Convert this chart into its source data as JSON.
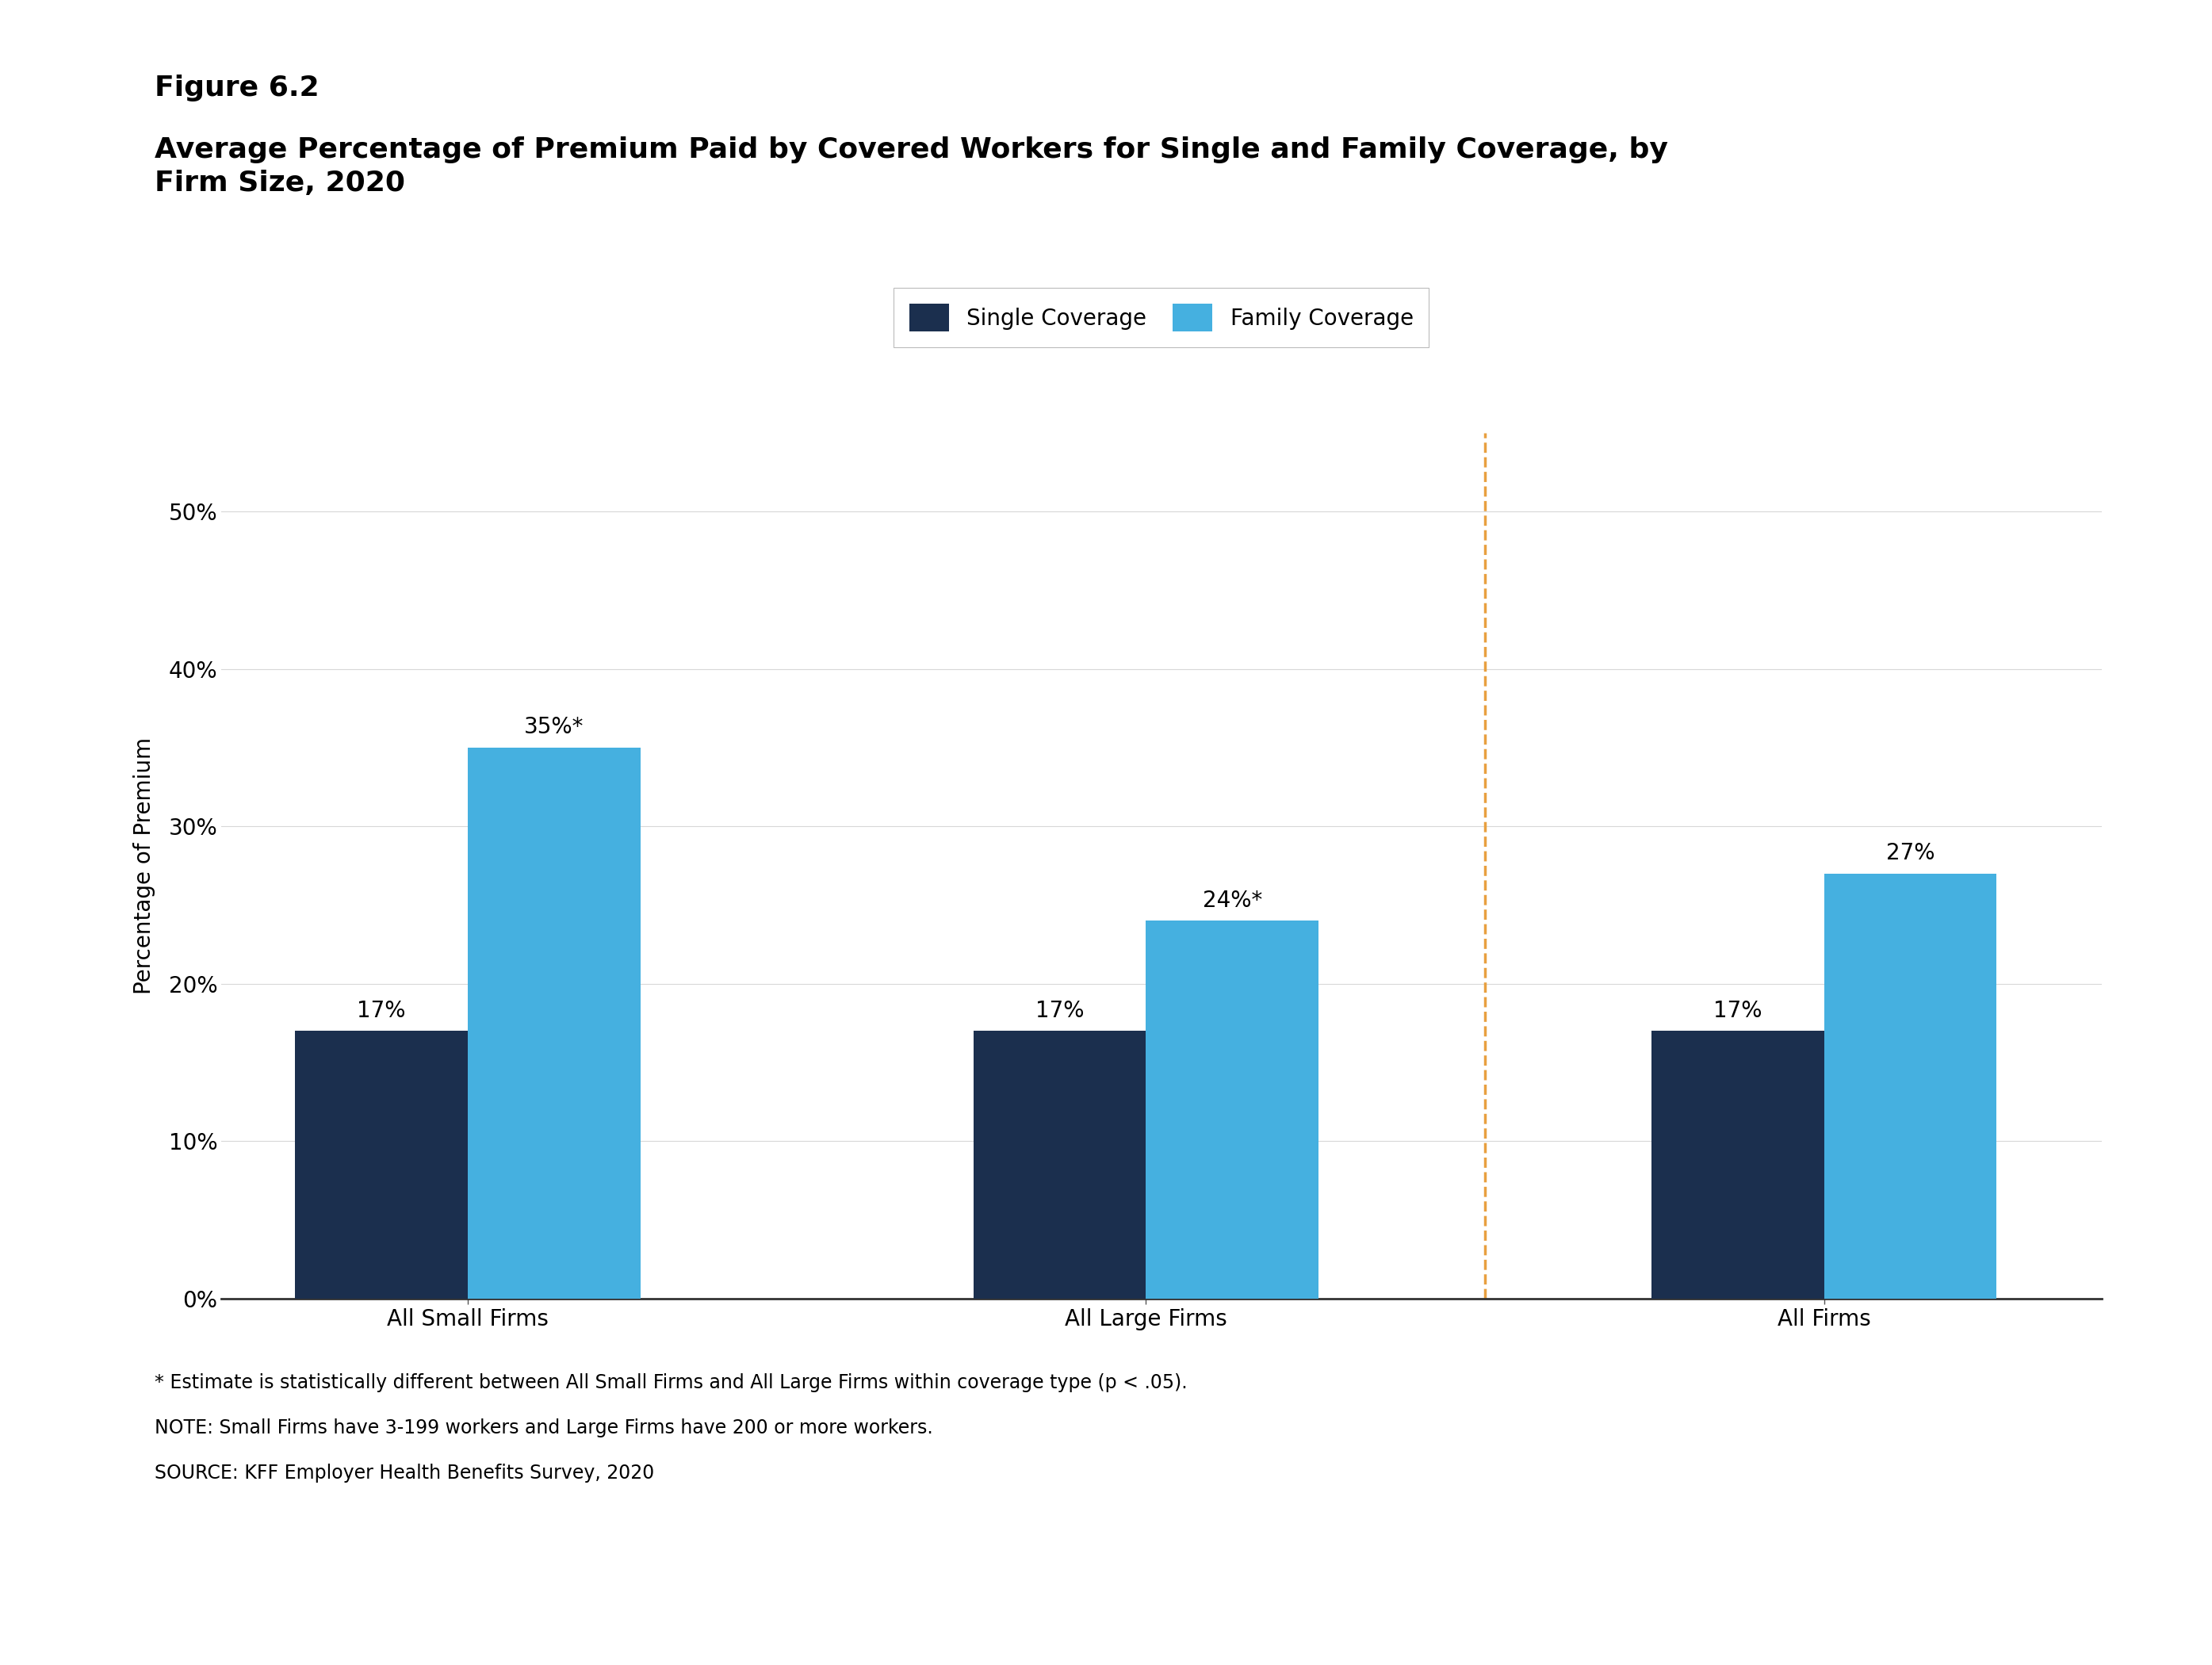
{
  "figure_label": "Figure 6.2",
  "title_line1": "Average Percentage of Premium Paid by Covered Workers for Single and Family Coverage, by",
  "title_line2": "Firm Size, 2020",
  "categories": [
    "All Small Firms",
    "All Large Firms",
    "All Firms"
  ],
  "single_values": [
    17,
    17,
    17
  ],
  "family_values": [
    35,
    24,
    27
  ],
  "single_labels": [
    "17%",
    "17%",
    "17%"
  ],
  "family_labels": [
    "35%*",
    "24%*",
    "27%"
  ],
  "single_color": "#1b2f4e",
  "family_color": "#45b0e0",
  "ylabel": "Percentage of Premium",
  "ylim": [
    0,
    55
  ],
  "yticks": [
    0,
    10,
    20,
    30,
    40,
    50
  ],
  "ytick_labels": [
    "0%",
    "10%",
    "20%",
    "30%",
    "40%",
    "50%"
  ],
  "legend_single": "Single Coverage",
  "legend_family": "Family Coverage",
  "dashed_line_color": "#e8a040",
  "footnote1": "* Estimate is statistically different between All Small Firms and All Large Firms within coverage type (p < .05).",
  "footnote2": "NOTE: Small Firms have 3-199 workers and Large Firms have 200 or more workers.",
  "footnote3": "SOURCE: KFF Employer Health Benefits Survey, 2020",
  "bar_width": 0.28,
  "group_positions": [
    0.4,
    1.5,
    2.6
  ],
  "background_color": "#ffffff",
  "axis_line_color": "#333333",
  "title_fontsize": 26,
  "label_fontsize": 20,
  "tick_fontsize": 20,
  "bar_label_fontsize": 20,
  "legend_fontsize": 20,
  "footnote_fontsize": 17,
  "figure_label_fontsize": 26
}
